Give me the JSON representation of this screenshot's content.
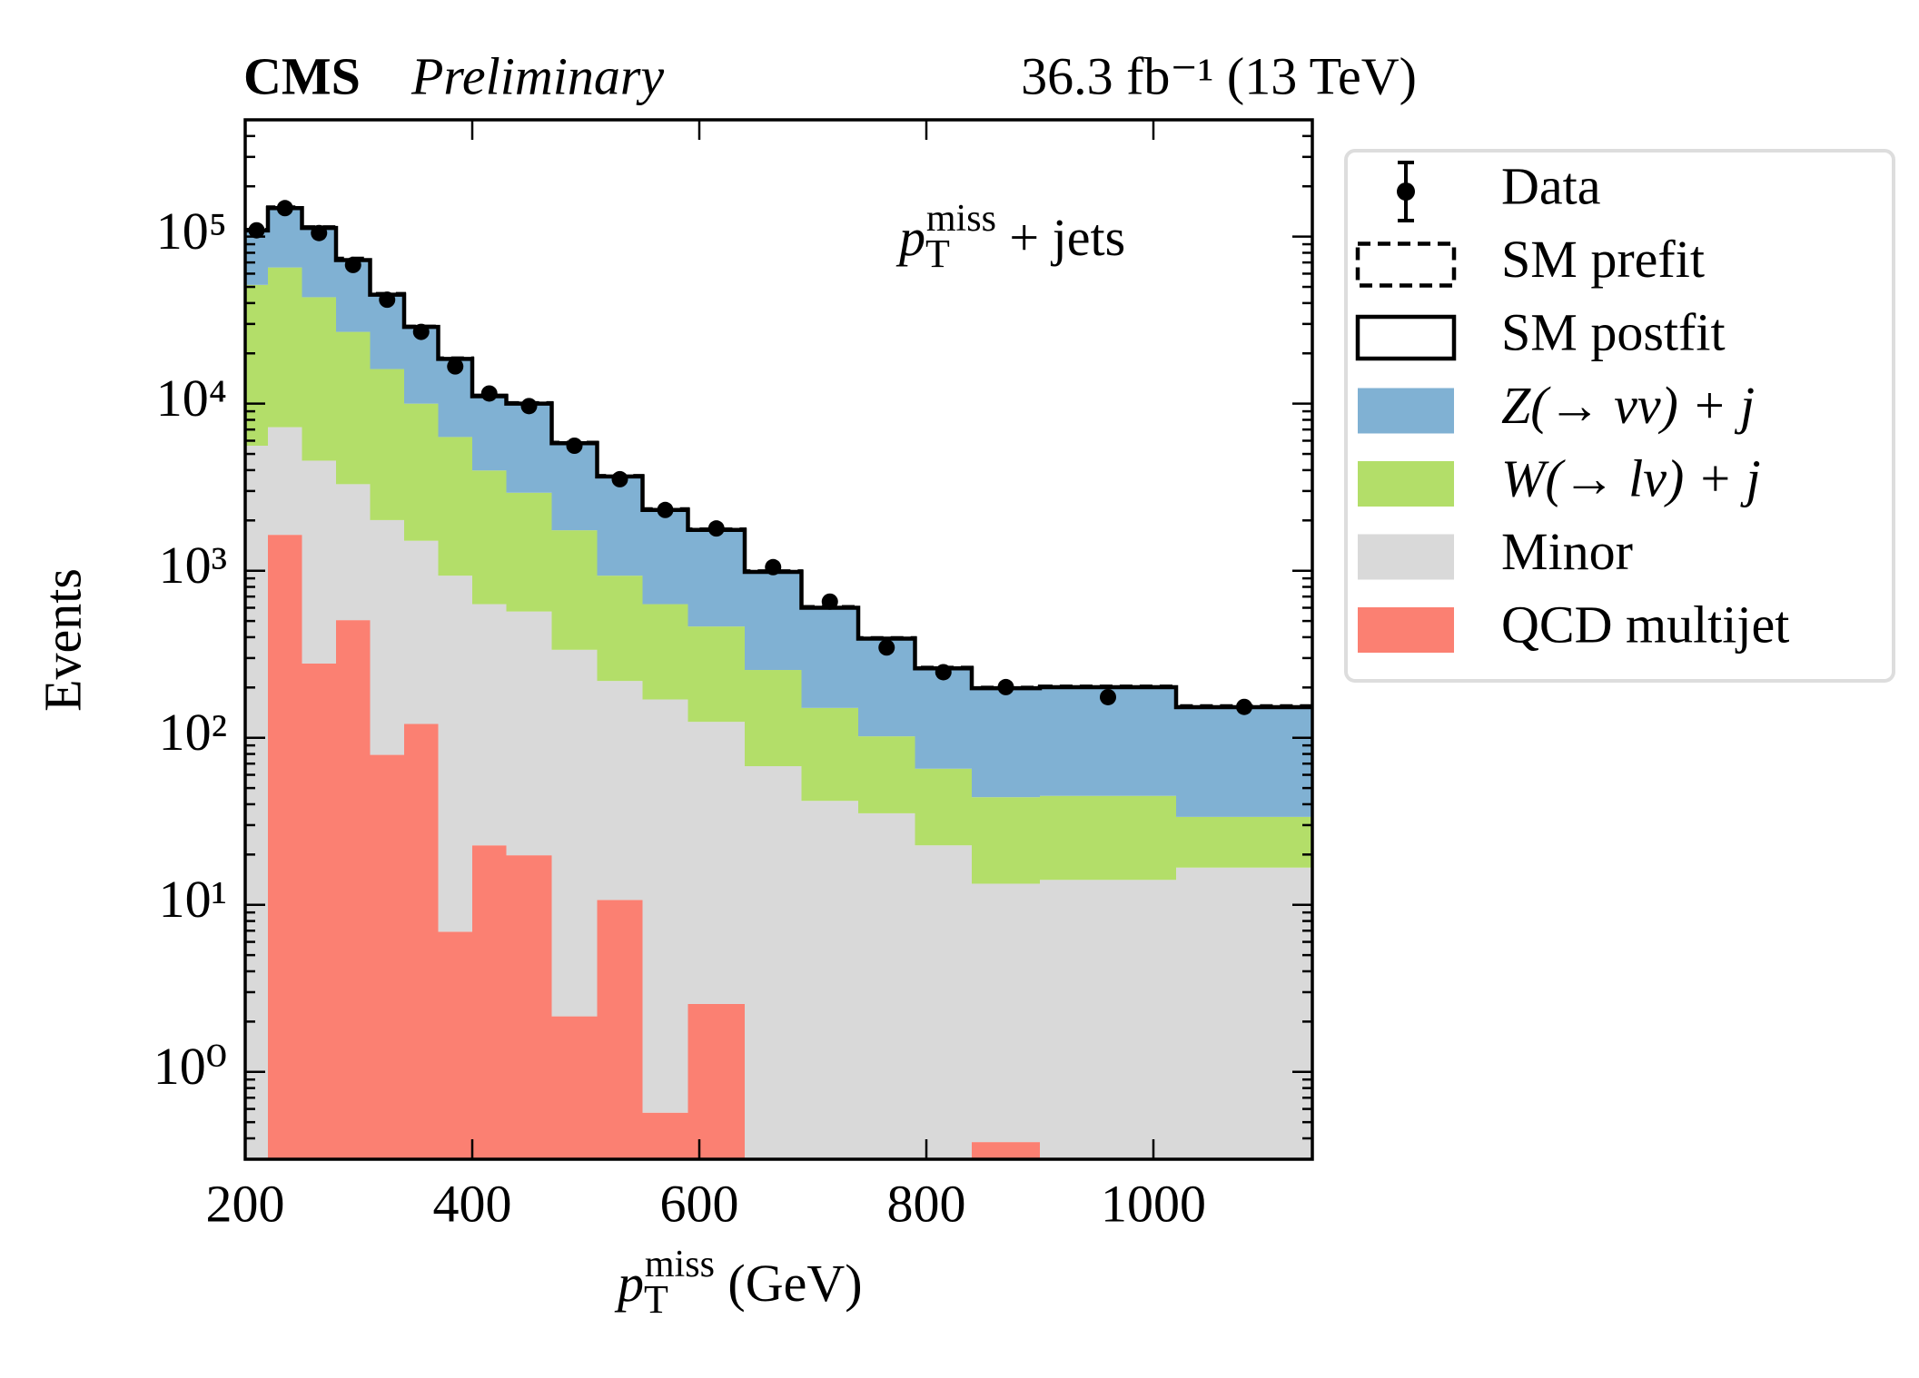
{
  "chart_data": {
    "type": "stacked-histogram",
    "header": {
      "experiment": "CMS",
      "status": "Preliminary",
      "lumi": "36.3 fb⁻¹ (13 TeV)"
    },
    "annotation": {
      "symbol": "p",
      "sub": "T",
      "sup": "miss",
      "text": " + jets"
    },
    "xlabel": {
      "symbol": "p",
      "sub": "T",
      "sup": "miss",
      "text": " (GeV)"
    },
    "ylabel": "Events",
    "bins": [
      200,
      220,
      250,
      280,
      310,
      340,
      370,
      400,
      430,
      470,
      510,
      550,
      590,
      640,
      690,
      740,
      790,
      840,
      900,
      1020,
      1140
    ],
    "xlim": [
      200,
      1140
    ],
    "xticks": [
      200,
      400,
      600,
      800,
      1000
    ],
    "ylim": [
      0.3,
      500000
    ],
    "log_scale": true,
    "yticks": [
      {
        "value": 1,
        "label": "10⁰"
      },
      {
        "value": 10,
        "label": "10¹"
      },
      {
        "value": 100,
        "label": "10²"
      },
      {
        "value": 1000,
        "label": "10³"
      },
      {
        "value": 10000,
        "label": "10⁴"
      },
      {
        "value": 100000,
        "label": "10⁵"
      }
    ],
    "series": [
      {
        "name": "QCD multijet",
        "color": "#fb8072",
        "values": [
          null,
          1640,
          278,
          506,
          79,
          121,
          6.9,
          22.7,
          19.8,
          2.15,
          10.7,
          0.57,
          2.55,
          null,
          null,
          null,
          null,
          0.38,
          null,
          null
        ]
      },
      {
        "name": "Minor",
        "color": "#d9d9d9",
        "values": [
          5600,
          5590,
          4280,
          2790,
          1930,
          1390,
          927,
          608,
          550,
          334,
          208,
          169,
          122,
          67.6,
          41.9,
          35.3,
          22.7,
          13.0,
          14.1,
          16.7
        ]
      },
      {
        "name": "W(→ lν) + j",
        "color": "#b3de69",
        "values": [
          45800,
          58100,
          38800,
          23600,
          14100,
          8490,
          5380,
          3350,
          2360,
          1410,
          715,
          461,
          339,
          187,
          109,
          66.7,
          42.6,
          30.7,
          30.8,
          16.9
        ]
      },
      {
        "name": "Z(→ νν) + j",
        "color": "#80b1d3",
        "values": [
          57500,
          82700,
          69300,
          45400,
          28800,
          18800,
          12200,
          7090,
          7070,
          4050,
          2730,
          1680,
          1290,
          729,
          449,
          290,
          195,
          154,
          156,
          119
        ]
      }
    ],
    "prefit": {
      "name": "SM prefit",
      "color": "#000000",
      "values": [
        110000,
        150000,
        114000,
        74000,
        45500,
        29000,
        18700,
        11200,
        10100,
        5850,
        3700,
        2340,
        1770,
        995,
        608,
        396,
        263,
        200,
        203,
        155
      ]
    },
    "postfit": {
      "name": "SM postfit",
      "color": "#000000"
    },
    "data": {
      "name": "Data",
      "color": "#000000",
      "values": [
        109000,
        148000,
        105000,
        67600,
        41900,
        26900,
        16700,
        11500,
        9670,
        5600,
        3530,
        2310,
        1790,
        1050,
        653,
        347,
        247,
        201,
        175,
        153
      ],
      "errors": [
        330,
        385,
        324,
        260,
        205,
        164,
        129,
        107,
        98,
        75,
        59,
        48,
        42,
        32,
        26,
        19,
        16,
        14,
        13,
        12
      ]
    }
  }
}
